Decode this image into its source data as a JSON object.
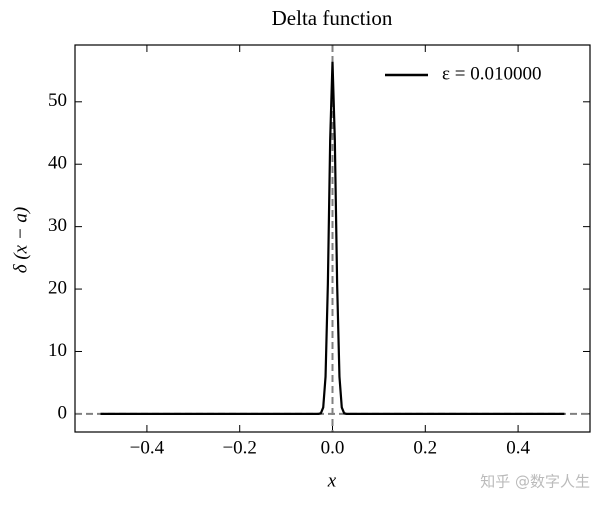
{
  "chart_data": {
    "type": "line",
    "title": "Delta function",
    "xlabel": "x",
    "ylabel": "δ (x − a)",
    "x": [
      -0.5,
      -0.1,
      -0.04,
      -0.03,
      -0.025,
      -0.02,
      -0.015,
      -0.01,
      -0.005,
      0,
      0.005,
      0.01,
      0.015,
      0.02,
      0.025,
      0.03,
      0.04,
      0.1,
      0.5
    ],
    "series": [
      {
        "name": "ε = 0.010000",
        "color": "#000000",
        "values": [
          0,
          0,
          0,
          0.01,
          0.11,
          1.03,
          5.95,
          20.76,
          43.94,
          56.42,
          43.94,
          20.76,
          5.95,
          1.03,
          0.11,
          0.01,
          0,
          0,
          0
        ]
      }
    ],
    "reference_lines": {
      "x": 0,
      "y": 0,
      "color": "#808080"
    },
    "xlim": [
      -0.555,
      0.555
    ],
    "ylim": [
      -2.9,
      59.1
    ],
    "xticks": [
      {
        "value": -0.4,
        "label": "−0.4"
      },
      {
        "value": -0.2,
        "label": "−0.2"
      },
      {
        "value": 0,
        "label": "0.0"
      },
      0.2,
      0.4
    ],
    "yticks": [
      0,
      10,
      20,
      30,
      40,
      50
    ],
    "legend": "upper right",
    "watermark": "知乎 @数字人生"
  }
}
